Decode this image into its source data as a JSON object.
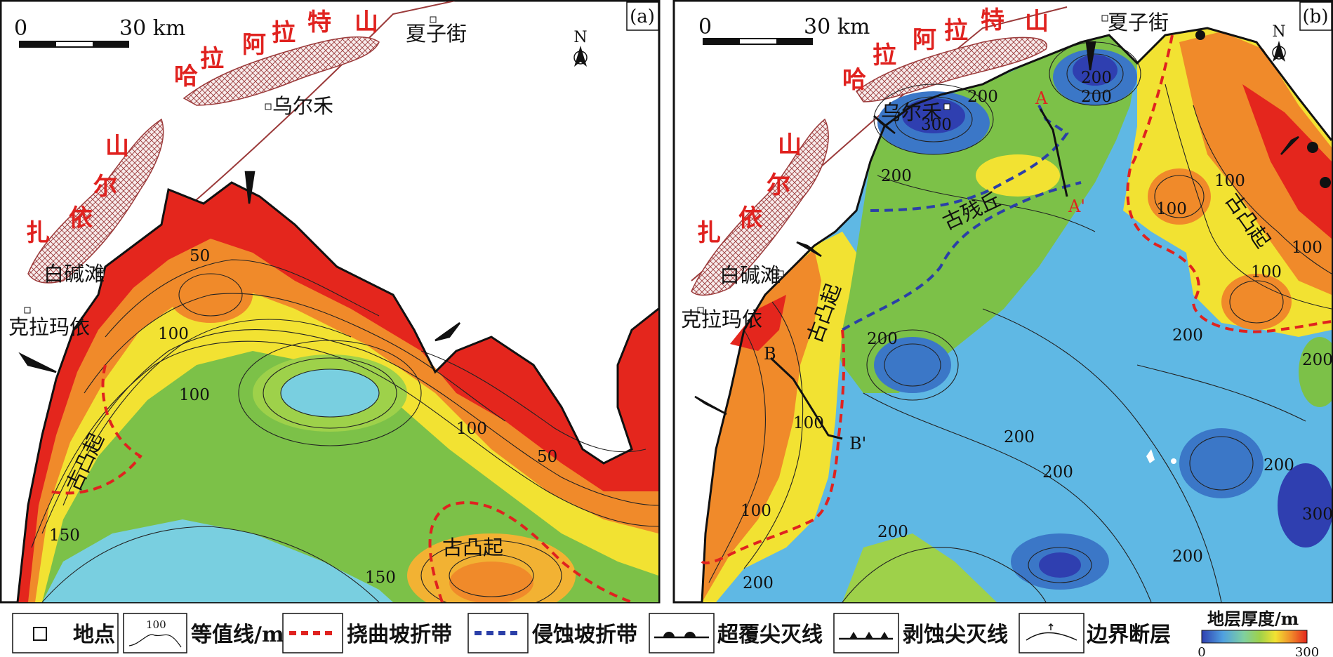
{
  "panels": [
    {
      "id": "a",
      "panel_label": "(a)",
      "scale": {
        "start": "0",
        "end": "30 km"
      },
      "north": "N",
      "places": [
        {
          "name": "夏子街"
        },
        {
          "name": "乌尔禾"
        },
        {
          "name": "白碱滩"
        },
        {
          "name": "克拉玛依"
        }
      ],
      "mountain_labels": [
        "哈",
        "拉",
        "阿",
        "拉",
        "特",
        "山",
        "山",
        "尔",
        "依",
        "扎"
      ],
      "contour_labels": [
        "50",
        "100",
        "100",
        "100",
        "50",
        "150",
        "150"
      ],
      "zone_labels": [
        "古凸起",
        "古凸起"
      ]
    },
    {
      "id": "b",
      "panel_label": "(b)",
      "scale": {
        "start": "0",
        "end": "30 km"
      },
      "north": "N",
      "places": [
        {
          "name": "夏子街"
        },
        {
          "name": "乌尔禾"
        },
        {
          "name": "白碱滩"
        },
        {
          "name": "克拉玛依"
        }
      ],
      "mountain_labels": [
        "哈",
        "拉",
        "阿",
        "拉",
        "特",
        "山",
        "山",
        "尔",
        "依",
        "扎"
      ],
      "contour_labels": [
        "200",
        "300",
        "200",
        "200",
        "200",
        "100",
        "100",
        "100",
        "100",
        "200",
        "200",
        "200",
        "200",
        "200",
        "200",
        "200",
        "300",
        "200",
        "100",
        "100",
        "200"
      ],
      "zone_labels": [
        "古残丘",
        "古凸起",
        "古凸起"
      ],
      "section_labels": [
        "A",
        "A'",
        "B",
        "B'"
      ]
    }
  ],
  "legend": {
    "items": [
      {
        "label": "地点"
      },
      {
        "label": "等值线/m",
        "sample": "100"
      },
      {
        "label": "挠曲坡折带"
      },
      {
        "label": "侵蚀坡折带"
      },
      {
        "label": "超覆尖灭线"
      },
      {
        "label": "剥蚀尖灭线"
      },
      {
        "label": "边界断层"
      }
    ],
    "colorbar": {
      "title": "地层厚度/m",
      "min": "0",
      "max": "300"
    }
  },
  "colors": {
    "thin": "#e4261d",
    "orange": "#f08a2a",
    "yellow": "#f2e232",
    "green": "#7cc148",
    "cyan": "#79cfe0",
    "blue": "#3b77c7",
    "crosshatch": "#9b3a3a",
    "flexure_line": "#e0221f",
    "erosion_line": "#2b3fa8"
  }
}
